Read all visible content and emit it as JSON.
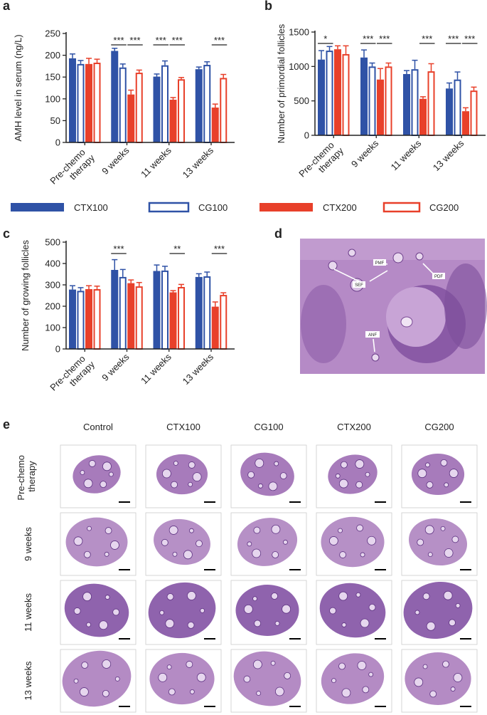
{
  "panel_labels": [
    "a",
    "b",
    "c",
    "d",
    "e"
  ],
  "chart_data": [
    {
      "type": "bar",
      "y_label": "AMH level in serum (ng/L)",
      "categories": [
        "Pre-chemo therapy",
        "9 weeks",
        "11 weeks",
        "13 weeks"
      ],
      "ylim": [
        0,
        250
      ],
      "yticks": [
        0,
        50,
        100,
        150,
        200,
        250
      ],
      "series": [
        {
          "name": "CTX100",
          "color": "#2f52a6",
          "style": "filled",
          "values": [
            193,
            210,
            151,
            168
          ],
          "errors": [
            10,
            6,
            6,
            5
          ]
        },
        {
          "name": "CG100",
          "color": "#2f52a6",
          "style": "outline",
          "values": [
            180,
            172,
            177,
            178
          ],
          "errors": [
            8,
            8,
            10,
            7
          ]
        },
        {
          "name": "CTX200",
          "color": "#e8402a",
          "style": "filled",
          "values": [
            180,
            110,
            98,
            80
          ],
          "errors": [
            13,
            10,
            5,
            8
          ]
        },
        {
          "name": "CG200",
          "color": "#e8402a",
          "style": "outline",
          "values": [
            183,
            160,
            145,
            148
          ],
          "errors": [
            8,
            6,
            4,
            8
          ]
        }
      ],
      "annotations": [
        "***",
        "***",
        "***",
        "***",
        "***"
      ]
    },
    {
      "type": "bar",
      "y_label": "Number of  primordial follicles",
      "categories": [
        "Pre-chemo therapy",
        "9 weeks",
        "11 weeks",
        "13 weeks"
      ],
      "ylim": [
        0,
        1500
      ],
      "yticks": [
        0,
        500,
        1000,
        1500
      ],
      "series": [
        {
          "color": "#2f52a6",
          "style": "filled",
          "values": [
            1100,
            1130,
            890,
            680
          ],
          "errors": [
            130,
            110,
            50,
            80
          ]
        },
        {
          "color": "#2f52a6",
          "style": "outline",
          "values": [
            1230,
            1000,
            960,
            810
          ],
          "errors": [
            60,
            50,
            130,
            110
          ]
        },
        {
          "color": "#e8402a",
          "style": "filled",
          "values": [
            1250,
            810,
            530,
            350
          ],
          "errors": [
            50,
            160,
            30,
            50
          ]
        },
        {
          "color": "#e8402a",
          "style": "outline",
          "values": [
            1180,
            1000,
            930,
            650
          ],
          "errors": [
            120,
            50,
            110,
            50
          ]
        }
      ],
      "annotations": [
        "*",
        "***",
        "***",
        "***",
        "***",
        "***"
      ]
    },
    {
      "type": "bar",
      "y_label": "Number of growing follicles",
      "categories": [
        "Pre-chemo therapy",
        "9 weeks",
        "11 weeks",
        "13 weeks"
      ],
      "ylim": [
        0,
        500
      ],
      "yticks": [
        0,
        100,
        200,
        300,
        400,
        500
      ],
      "series": [
        {
          "color": "#2f52a6",
          "style": "filled",
          "values": [
            278,
            370,
            365,
            337
          ],
          "errors": [
            18,
            48,
            28,
            15
          ]
        },
        {
          "color": "#2f52a6",
          "style": "outline",
          "values": [
            272,
            337,
            367,
            340
          ],
          "errors": [
            15,
            35,
            20,
            20
          ]
        },
        {
          "color": "#e8402a",
          "style": "filled",
          "values": [
            280,
            308,
            265,
            198
          ],
          "errors": [
            16,
            15,
            8,
            22
          ]
        },
        {
          "color": "#e8402a",
          "style": "outline",
          "values": [
            280,
            293,
            290,
            253
          ],
          "errors": [
            14,
            18,
            12,
            10
          ]
        }
      ],
      "annotations": [
        "***",
        "**",
        "***"
      ]
    }
  ],
  "histology": {
    "labels": [
      "PMF",
      "PDF",
      "SEF",
      "ANF"
    ]
  },
  "image_grid": {
    "columns": [
      "Control",
      "CTX100",
      "CG100",
      "CTX200",
      "CG200"
    ],
    "rows": [
      "Pre-chemo therapy",
      "9 weeks",
      "11 weeks",
      "13 weeks"
    ]
  }
}
